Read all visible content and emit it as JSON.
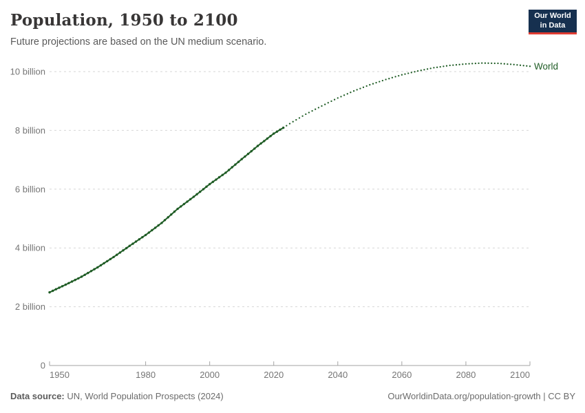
{
  "header": {
    "title": "Population, 1950 to 2100",
    "subtitle": "Future projections are based on the UN medium scenario.",
    "logo": {
      "line1": "Our World",
      "line2": "in Data",
      "bg_color": "#16304f",
      "accent_color": "#e03c32"
    }
  },
  "footer": {
    "source_label": "Data source:",
    "source_text": " UN, World Population Prospects (2024)",
    "link_text": "OurWorldinData.org/population-growth | CC BY"
  },
  "chart_data": {
    "type": "line",
    "title": "Population, 1950 to 2100",
    "xlabel": "",
    "ylabel": "",
    "unit": "billion people",
    "xlim": [
      1950,
      2100
    ],
    "ylim": [
      0,
      10.5
    ],
    "x_ticks": [
      1950,
      1980,
      2000,
      2020,
      2040,
      2060,
      2080,
      2100
    ],
    "y_ticks": [
      {
        "value": 0,
        "label": "0"
      },
      {
        "value": 2,
        "label": "2 billion"
      },
      {
        "value": 4,
        "label": "4 billion"
      },
      {
        "value": 6,
        "label": "6 billion"
      },
      {
        "value": 8,
        "label": "8 billion"
      },
      {
        "value": 10,
        "label": "10 billion"
      }
    ],
    "grid": "horizontal-dashed",
    "legend": "end-of-line-label",
    "colors": {
      "series": "#1f5c25",
      "gridline": "#d6d6d6",
      "axis": "#a3a3a3",
      "tick_label": "#757575"
    },
    "series": [
      {
        "name": "World",
        "color": "#1f5c25",
        "historical_style": "solid-with-markers",
        "projection_style": "dotted",
        "historical": [
          [
            1950,
            2.49
          ],
          [
            1955,
            2.75
          ],
          [
            1960,
            3.02
          ],
          [
            1965,
            3.34
          ],
          [
            1970,
            3.69
          ],
          [
            1975,
            4.07
          ],
          [
            1980,
            4.44
          ],
          [
            1985,
            4.85
          ],
          [
            1990,
            5.33
          ],
          [
            1995,
            5.74
          ],
          [
            2000,
            6.17
          ],
          [
            2005,
            6.56
          ],
          [
            2010,
            7.02
          ],
          [
            2015,
            7.47
          ],
          [
            2020,
            7.89
          ],
          [
            2023,
            8.09
          ]
        ],
        "projection": [
          [
            2023,
            8.09
          ],
          [
            2025,
            8.23
          ],
          [
            2030,
            8.55
          ],
          [
            2035,
            8.83
          ],
          [
            2040,
            9.1
          ],
          [
            2045,
            9.34
          ],
          [
            2050,
            9.55
          ],
          [
            2055,
            9.73
          ],
          [
            2060,
            9.89
          ],
          [
            2065,
            10.02
          ],
          [
            2070,
            10.13
          ],
          [
            2075,
            10.21
          ],
          [
            2080,
            10.26
          ],
          [
            2085,
            10.29
          ],
          [
            2090,
            10.28
          ],
          [
            2095,
            10.24
          ],
          [
            2100,
            10.18
          ]
        ]
      }
    ]
  }
}
